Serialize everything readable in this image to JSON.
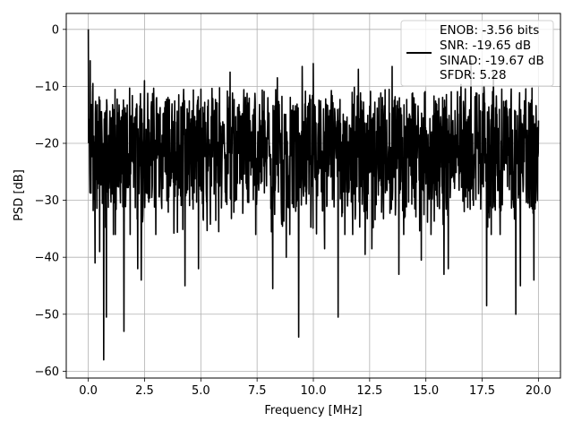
{
  "chart_data": {
    "type": "line",
    "xlabel": "Frequency [MHz]",
    "ylabel": "PSD [dB]",
    "xlim": [
      -0.98,
      20.98
    ],
    "ylim": [
      -61.2,
      2.8
    ],
    "xticks": [
      0.0,
      2.5,
      5.0,
      7.5,
      10.0,
      12.5,
      15.0,
      17.5,
      20.0
    ],
    "xtick_labels": [
      "0.0",
      "2.5",
      "5.0",
      "7.5",
      "10.0",
      "12.5",
      "15.0",
      "17.5",
      "20.0"
    ],
    "yticks": [
      0,
      -10,
      -20,
      -30,
      -40,
      -50,
      -60
    ],
    "ytick_labels": [
      "0",
      "−10",
      "−20",
      "−30",
      "−40",
      "−50",
      "−60"
    ],
    "grid": true,
    "legend_position": "top-right",
    "legend_entries": [
      "ENOB: -3.56 bits",
      "SNR: -19.65 dB",
      "SINAD: -19.67 dB",
      "SFDR: 5.28"
    ],
    "series_color": "#000000",
    "series": [
      {
        "baseline": -21.5,
        "x_range": [
          0.0,
          20.0
        ],
        "peaks": [
          {
            "x": 0.0,
            "y": 0.0
          },
          {
            "x": 0.08,
            "y": -5.5
          },
          {
            "x": 0.2,
            "y": -9.5
          },
          {
            "x": 1.2,
            "y": -8.5
          },
          {
            "x": 2.5,
            "y": -9.0
          },
          {
            "x": 5.0,
            "y": -10.5
          },
          {
            "x": 6.3,
            "y": -7.5
          },
          {
            "x": 8.4,
            "y": -8.5
          },
          {
            "x": 9.5,
            "y": -6.5
          },
          {
            "x": 10.0,
            "y": -6.0
          },
          {
            "x": 12.0,
            "y": -7.0
          },
          {
            "x": 13.5,
            "y": -6.5
          },
          {
            "x": 16.0,
            "y": -7.0
          },
          {
            "x": 17.0,
            "y": -5.5
          },
          {
            "x": 18.0,
            "y": -7.5
          }
        ],
        "troughs": [
          {
            "x": 0.3,
            "y": -41.0
          },
          {
            "x": 0.5,
            "y": -39.0
          },
          {
            "x": 0.68,
            "y": -58.0
          },
          {
            "x": 0.8,
            "y": -50.5
          },
          {
            "x": 1.2,
            "y": -36.0
          },
          {
            "x": 1.58,
            "y": -53.0
          },
          {
            "x": 2.2,
            "y": -42.0
          },
          {
            "x": 2.35,
            "y": -44.0
          },
          {
            "x": 3.0,
            "y": -36.0
          },
          {
            "x": 4.3,
            "y": -45.0
          },
          {
            "x": 4.9,
            "y": -42.0
          },
          {
            "x": 5.8,
            "y": -35.5
          },
          {
            "x": 8.2,
            "y": -45.5
          },
          {
            "x": 8.8,
            "y": -40.0
          },
          {
            "x": 9.35,
            "y": -54.0
          },
          {
            "x": 10.5,
            "y": -38.5
          },
          {
            "x": 11.1,
            "y": -50.5
          },
          {
            "x": 12.3,
            "y": -39.5
          },
          {
            "x": 12.6,
            "y": -38.5
          },
          {
            "x": 13.8,
            "y": -43.0
          },
          {
            "x": 14.8,
            "y": -40.5
          },
          {
            "x": 15.8,
            "y": -43.0
          },
          {
            "x": 16.0,
            "y": -42.0
          },
          {
            "x": 17.7,
            "y": -48.5
          },
          {
            "x": 19.0,
            "y": -50.0
          },
          {
            "x": 19.2,
            "y": -45.0
          },
          {
            "x": 19.8,
            "y": -44.0
          }
        ]
      }
    ]
  }
}
